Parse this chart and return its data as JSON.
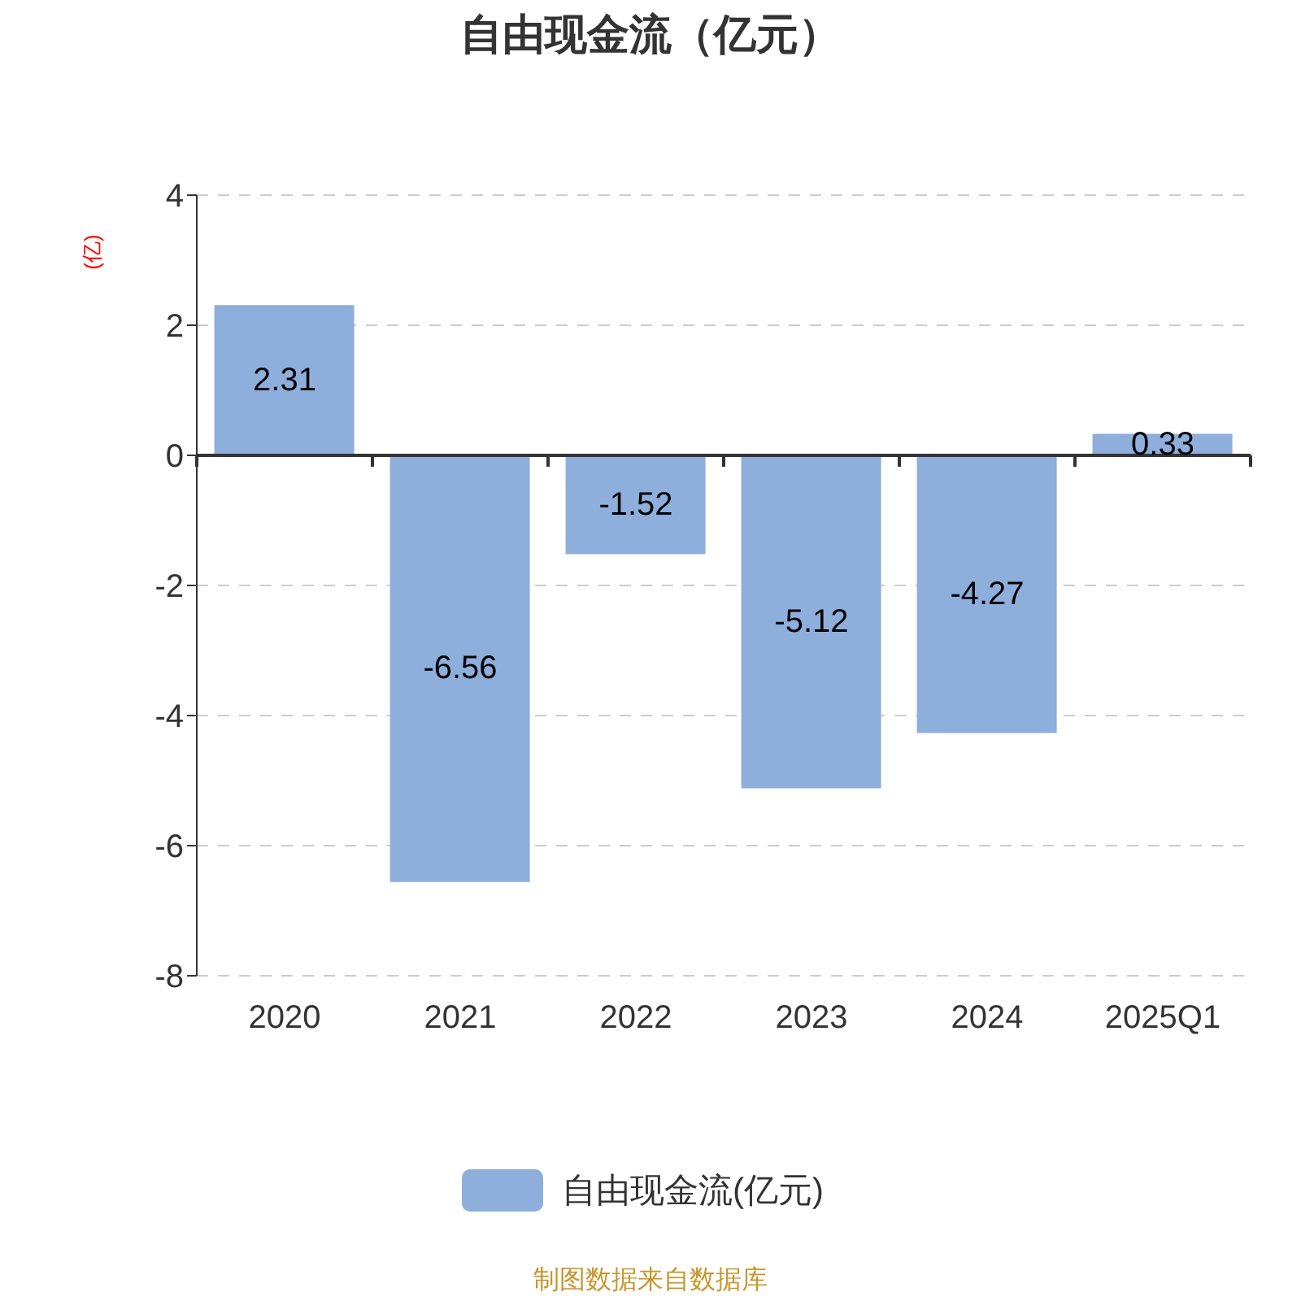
{
  "chart_data": {
    "type": "bar",
    "title": "自由现金流（亿元）",
    "ylabel": "(亿)",
    "categories": [
      "2020",
      "2021",
      "2022",
      "2023",
      "2024",
      "2025Q1"
    ],
    "series": [
      {
        "name": "自由现金流(亿元)",
        "color": "#8eaedb",
        "values": [
          2.31,
          -6.56,
          -1.52,
          -5.12,
          -4.27,
          0.33
        ]
      }
    ],
    "ylim": [
      -8,
      4
    ],
    "yticks": [
      -8,
      -6,
      -4,
      -2,
      0,
      2,
      4
    ],
    "grid": "y",
    "legend": "bottom",
    "data_labels": true,
    "annotations": [
      "制图数据来自数据库"
    ]
  }
}
